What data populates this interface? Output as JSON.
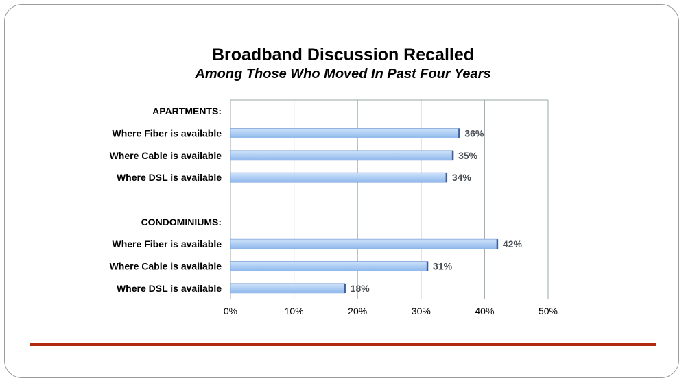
{
  "chart_data": {
    "type": "bar",
    "orientation": "horizontal",
    "title": "Broadband Discussion Recalled",
    "subtitle": "Among Those Who Moved In Past Four Years",
    "xlim": [
      0,
      50
    ],
    "x_ticks": [
      "0%",
      "10%",
      "20%",
      "30%",
      "40%",
      "50%"
    ],
    "grid": true,
    "rows": [
      {
        "label": "APARTMENTS:",
        "header": true,
        "value": null,
        "value_label": ""
      },
      {
        "label": "Where Fiber is available",
        "header": false,
        "value": 36,
        "value_label": "36%"
      },
      {
        "label": "Where Cable is available",
        "header": false,
        "value": 35,
        "value_label": "35%"
      },
      {
        "label": "Where DSL is available",
        "header": false,
        "value": 34,
        "value_label": "34%"
      },
      {
        "label": "",
        "header": false,
        "value": null,
        "value_label": ""
      },
      {
        "label": "CONDOMINIUMS:",
        "header": true,
        "value": null,
        "value_label": ""
      },
      {
        "label": "Where Fiber is available",
        "header": false,
        "value": 42,
        "value_label": "42%"
      },
      {
        "label": "Where Cable is available",
        "header": false,
        "value": 31,
        "value_label": "31%"
      },
      {
        "label": "Where DSL is available",
        "header": false,
        "value": 18,
        "value_label": "18%"
      }
    ],
    "colors": {
      "bar_fill_top": "#cfe3fb",
      "bar_fill_bottom": "#8fb8ec",
      "bar_edge": "#3e5f9a",
      "grid": "#9aa7a7",
      "accent_rule": "#b22a10"
    }
  }
}
